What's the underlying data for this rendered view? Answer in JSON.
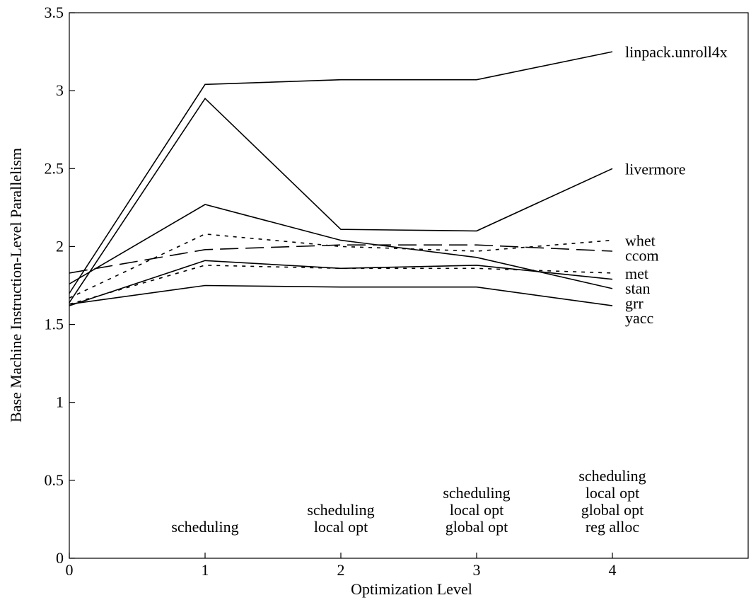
{
  "chart_data": {
    "type": "line",
    "title": "",
    "xlabel": "Optimization Level",
    "ylabel": "Base Machine Instruction-Level Parallelism",
    "xlim": [
      0,
      5
    ],
    "ylim": [
      0,
      3.5
    ],
    "xticks": [
      0,
      1,
      2,
      3,
      4
    ],
    "yticks": [
      0,
      0.5,
      1,
      1.5,
      2,
      2.5,
      3,
      3.5
    ],
    "x": [
      0,
      1,
      2,
      3,
      4
    ],
    "grid": false,
    "legend": "direct labels at right end of each line",
    "series": [
      {
        "name": "linpack.unroll4x",
        "values": [
          1.7,
          3.04,
          3.07,
          3.07,
          3.25
        ],
        "dash": "solid"
      },
      {
        "name": "livermore",
        "values": [
          1.64,
          2.95,
          2.11,
          2.1,
          2.5
        ],
        "dash": "solid"
      },
      {
        "name": "whet",
        "values": [
          1.67,
          2.08,
          2.0,
          1.97,
          2.04
        ],
        "dash": "short"
      },
      {
        "name": "ccom",
        "values": [
          1.83,
          1.98,
          2.01,
          2.01,
          1.97
        ],
        "dash": "long"
      },
      {
        "name": "met",
        "values": [
          1.63,
          1.88,
          1.86,
          1.86,
          1.83
        ],
        "dash": "short"
      },
      {
        "name": "grr",
        "values": [
          1.76,
          2.27,
          2.04,
          1.93,
          1.73
        ],
        "dash": "solid"
      },
      {
        "name": "stan",
        "values": [
          1.62,
          1.91,
          1.86,
          1.88,
          1.79
        ],
        "dash": "solid"
      },
      {
        "name": "yacc",
        "values": [
          1.63,
          1.75,
          1.74,
          1.74,
          1.62
        ],
        "dash": "solid"
      }
    ],
    "annotations": [
      {
        "x": 1,
        "lines": [
          "scheduling"
        ]
      },
      {
        "x": 2,
        "lines": [
          "scheduling",
          "local opt"
        ]
      },
      {
        "x": 3,
        "lines": [
          "scheduling",
          "local opt",
          "global opt"
        ]
      },
      {
        "x": 4,
        "lines": [
          "scheduling",
          "local opt",
          "global opt",
          "reg alloc"
        ]
      }
    ]
  }
}
